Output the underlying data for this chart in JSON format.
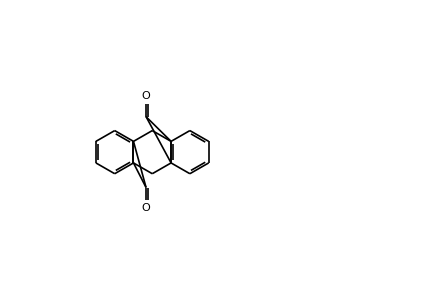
{
  "bg": "#ffffff",
  "lc": "#000000",
  "lw": 1.2
}
